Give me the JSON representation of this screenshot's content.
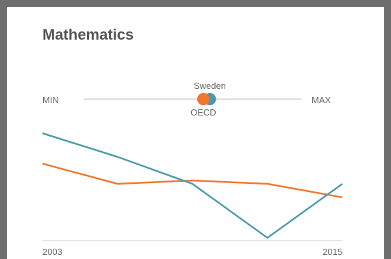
{
  "title": "Mathematics",
  "range": {
    "min_label": "MIN",
    "max_label": "MAX",
    "sweden_label": "Sweden",
    "oecd_label": "OECD",
    "sweden_position": 0.58,
    "oecd_position": 0.55
  },
  "colors": {
    "sweden": "#4b9aab",
    "oecd": "#f0772b",
    "track": "#dddddd",
    "axis": "#dddddd"
  },
  "chart_data": {
    "type": "line",
    "x": [
      2003,
      2006,
      2009,
      2012,
      2015
    ],
    "x_tick_labels": [
      "2003",
      "2015"
    ],
    "series": [
      {
        "name": "Sweden",
        "values": [
          509,
          502,
          494,
          478,
          494
        ]
      },
      {
        "name": "OECD",
        "values": [
          500,
          494,
          495,
          494,
          490
        ]
      }
    ],
    "ylim": [
      478,
      509
    ],
    "grid": false
  }
}
